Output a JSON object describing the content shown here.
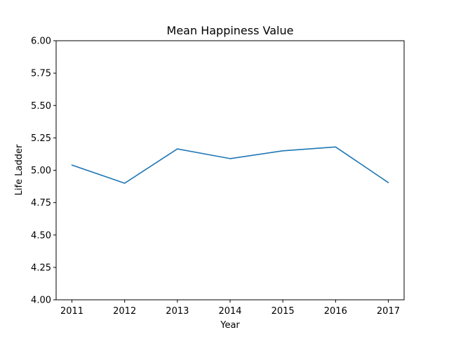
{
  "chart_data": {
    "type": "line",
    "title": "Mean Happiness Value",
    "xlabel": "Year",
    "ylabel": "Life Ladder",
    "x": [
      2011,
      2012,
      2013,
      2014,
      2015,
      2016,
      2017
    ],
    "series": [
      {
        "values": [
          5.04,
          4.9,
          5.165,
          5.09,
          5.15,
          5.18,
          4.905
        ],
        "color": "#1f77b4"
      }
    ],
    "xlim": [
      2010.7,
      2017.3
    ],
    "ylim": [
      4.0,
      6.0
    ],
    "xticks": [
      "2011",
      "2012",
      "2013",
      "2014",
      "2015",
      "2016",
      "2017"
    ],
    "yticks": [
      "4.00",
      "4.25",
      "4.50",
      "4.75",
      "5.00",
      "5.25",
      "5.50",
      "5.75",
      "6.00"
    ],
    "grid": false,
    "legend": "none"
  }
}
